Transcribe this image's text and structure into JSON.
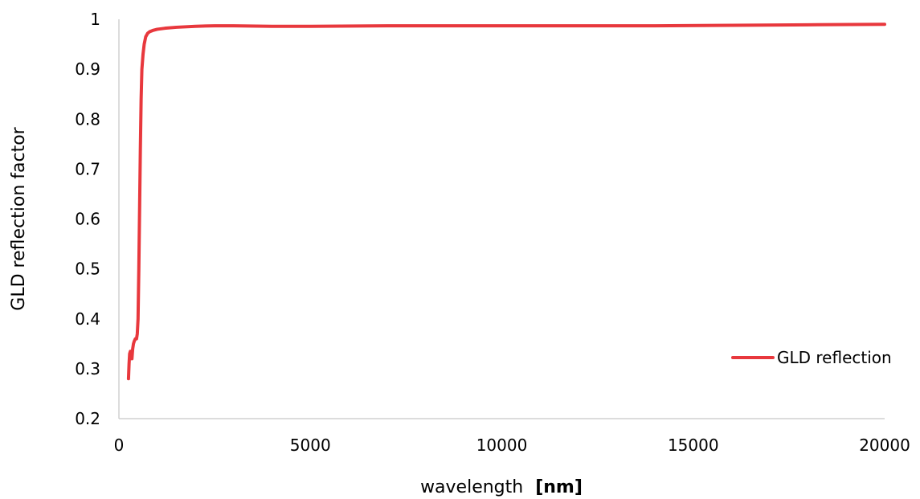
{
  "chart_data": {
    "type": "line",
    "title": "",
    "xlabel": "wavelength",
    "xlabel_unit": "[nm]",
    "ylabel": "GLD reflection factor",
    "xlim": [
      0,
      20000
    ],
    "ylim": [
      0.2,
      1.0
    ],
    "x_ticks": [
      "0",
      "5000",
      "10000",
      "15000",
      "20000"
    ],
    "y_ticks": [
      "0.2",
      "0.3",
      "0.4",
      "0.5",
      "0.6",
      "0.7",
      "0.8",
      "0.9",
      "1"
    ],
    "x_tick_values": [
      0,
      5000,
      10000,
      15000,
      20000
    ],
    "y_tick_values": [
      0.2,
      0.3,
      0.4,
      0.5,
      0.6,
      0.7,
      0.8,
      0.9,
      1.0
    ],
    "grid": false,
    "legend_position": "right",
    "series": [
      {
        "name": "GLD reflection",
        "color": "#e8383d",
        "points": [
          [
            250,
            0.28
          ],
          [
            265,
            0.31
          ],
          [
            280,
            0.33
          ],
          [
            300,
            0.335
          ],
          [
            320,
            0.33
          ],
          [
            340,
            0.32
          ],
          [
            360,
            0.34
          ],
          [
            380,
            0.35
          ],
          [
            400,
            0.355
          ],
          [
            430,
            0.36
          ],
          [
            460,
            0.36
          ],
          [
            480,
            0.37
          ],
          [
            500,
            0.4
          ],
          [
            520,
            0.5
          ],
          [
            540,
            0.62
          ],
          [
            560,
            0.74
          ],
          [
            580,
            0.84
          ],
          [
            600,
            0.9
          ],
          [
            630,
            0.93
          ],
          [
            660,
            0.95
          ],
          [
            700,
            0.965
          ],
          [
            750,
            0.972
          ],
          [
            800,
            0.975
          ],
          [
            900,
            0.978
          ],
          [
            1000,
            0.98
          ],
          [
            1200,
            0.982
          ],
          [
            1500,
            0.984
          ],
          [
            2000,
            0.986
          ],
          [
            2500,
            0.987
          ],
          [
            3000,
            0.987
          ],
          [
            4000,
            0.986
          ],
          [
            5000,
            0.986
          ],
          [
            7000,
            0.987
          ],
          [
            9000,
            0.987
          ],
          [
            10000,
            0.987
          ],
          [
            12000,
            0.987
          ],
          [
            14000,
            0.987
          ],
          [
            16000,
            0.988
          ],
          [
            18000,
            0.989
          ],
          [
            20000,
            0.99
          ]
        ]
      }
    ]
  }
}
